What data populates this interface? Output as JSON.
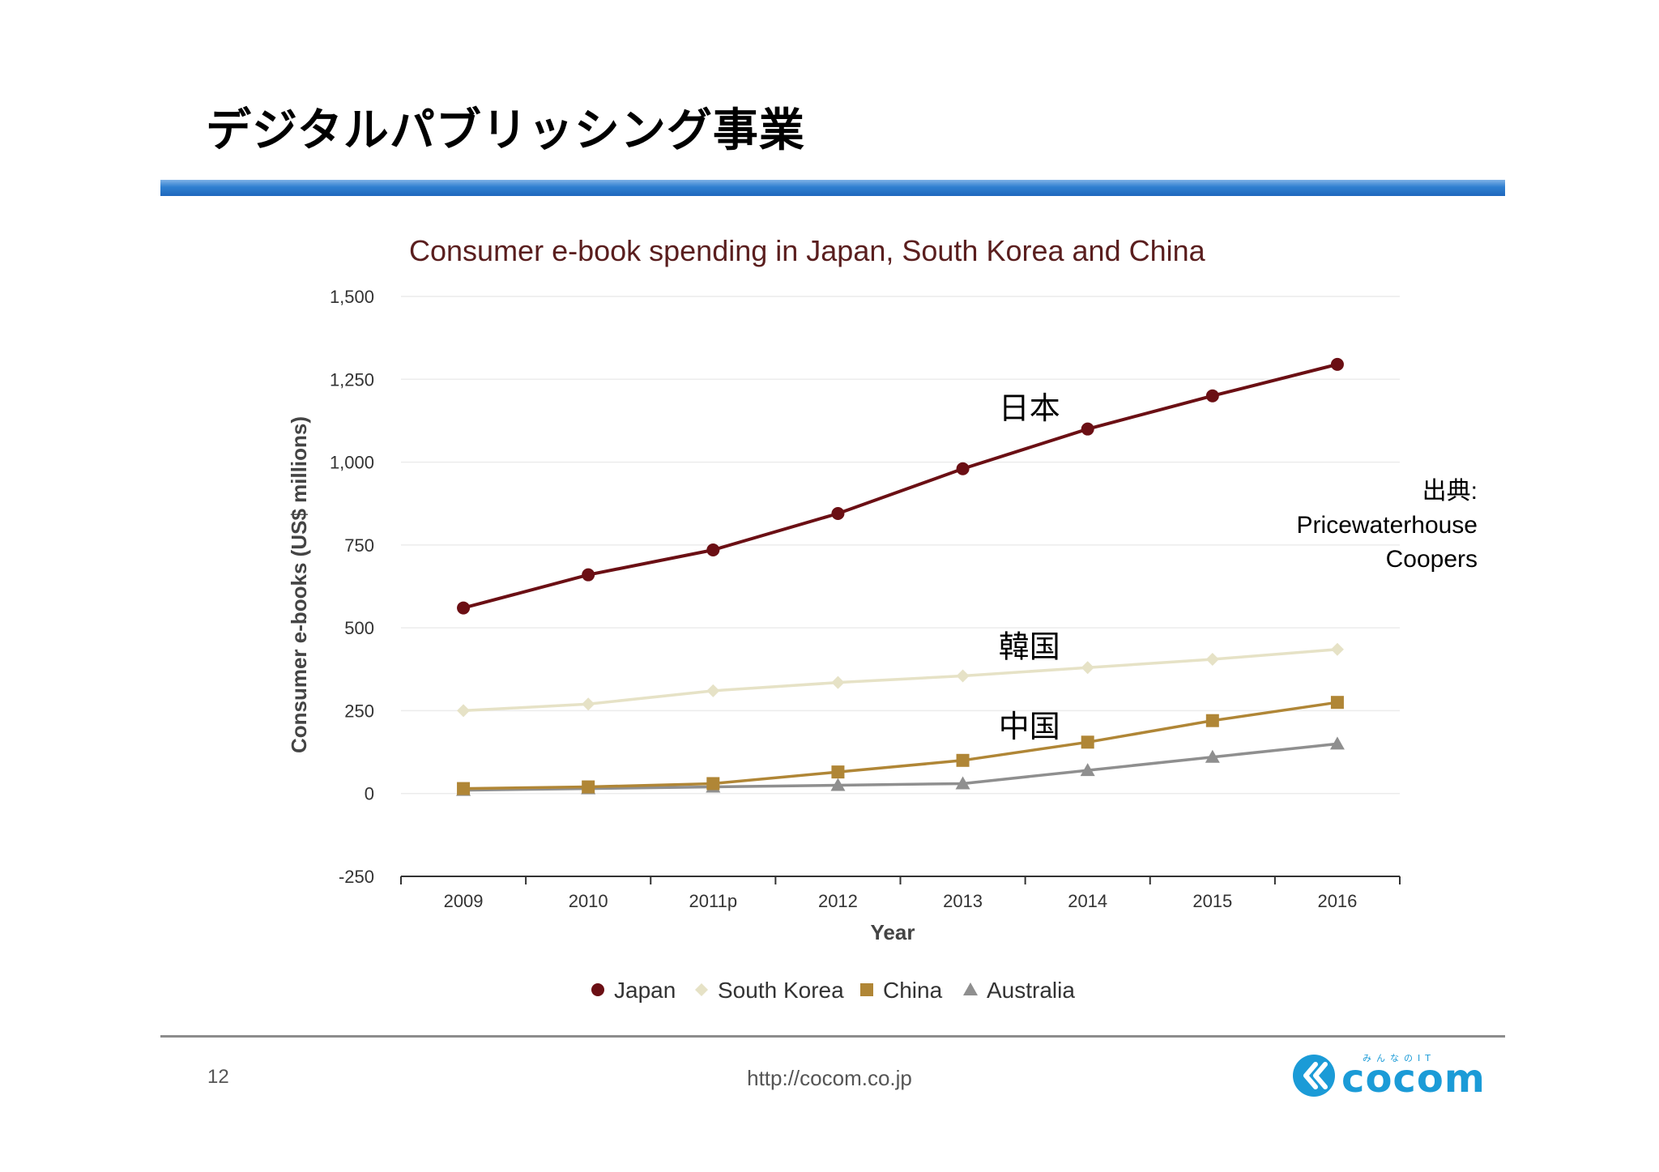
{
  "slide": {
    "title": "デジタルパブリッシング事業",
    "source_lines": [
      "出典:",
      "Pricewaterhouse",
      "Coopers"
    ],
    "page_number": "12",
    "footer_url": "http://cocom.co.jp",
    "logo": {
      "tagline": "みんなのIT",
      "wordmark": "cocom",
      "color": "#1b9bd7"
    }
  },
  "chart_data": {
    "type": "line",
    "title": "Consumer e-book spending in Japan, South Korea and China",
    "xlabel": "Year",
    "ylabel": "Consumer e-books (US$ millions)",
    "categories": [
      "2009",
      "2010",
      "2011p",
      "2012",
      "2013",
      "2014",
      "2015",
      "2016"
    ],
    "ylim": [
      -250,
      1500
    ],
    "yticks": [
      1500,
      1250,
      1000,
      750,
      500,
      250,
      0,
      -250
    ],
    "ytick_labels": [
      "1,500",
      "1,250",
      "1,000",
      "750",
      "500",
      "250",
      "0",
      "-250"
    ],
    "grid": true,
    "legend_position": "bottom",
    "series": [
      {
        "name": "Japan",
        "color": "#6b0f14",
        "marker": "circle",
        "values": [
          560,
          660,
          735,
          845,
          980,
          1100,
          1200,
          1295
        ]
      },
      {
        "name": "South Korea",
        "color": "#e6e2c6",
        "marker": "diamond",
        "values": [
          250,
          270,
          310,
          335,
          355,
          380,
          405,
          435
        ]
      },
      {
        "name": "China",
        "color": "#b08636",
        "marker": "square",
        "values": [
          15,
          20,
          30,
          65,
          100,
          155,
          220,
          275
        ]
      },
      {
        "name": "Australia",
        "color": "#8f8f8f",
        "marker": "triangle",
        "values": [
          10,
          15,
          20,
          25,
          30,
          70,
          110,
          150
        ]
      }
    ],
    "annotations": [
      {
        "text": "日本",
        "x": "2014",
        "y": 1165
      },
      {
        "text": "韓国",
        "x": "2014",
        "y": 445
      },
      {
        "text": "中国",
        "x": "2014",
        "y": 205
      }
    ]
  }
}
